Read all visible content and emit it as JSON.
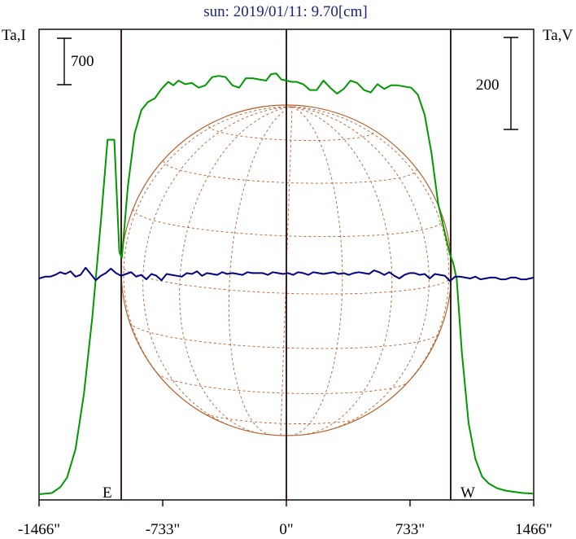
{
  "chart_data": {
    "type": "line",
    "title": "sun: 2019/01/11: 9.70[cm]",
    "left_axis_label": "Ta,I",
    "right_axis_label": "Ta,V",
    "scale_bar_left": "700",
    "scale_bar_right": "200",
    "limb_east_label": "E",
    "limb_west_label": "W",
    "xlim": [
      -1466,
      1466
    ],
    "x_ticks": [
      {
        "value": -1466,
        "label": "-1466\""
      },
      {
        "value": -733,
        "label": "-733\""
      },
      {
        "value": 0,
        "label": "0\""
      },
      {
        "value": 733,
        "label": "733\""
      },
      {
        "value": 1466,
        "label": "1466\""
      }
    ],
    "limb_x": [
      -980,
      980
    ],
    "grid": false,
    "series": [
      {
        "color": "#009900",
        "axis": "left",
        "ylim": [
          0,
          3700
        ],
        "x": [
          -1466,
          -1390,
          -1340,
          -1300,
          -1250,
          -1200,
          -1150,
          -1100,
          -1060,
          -1020,
          -990,
          -975,
          -940,
          -900,
          -860,
          -820,
          -780,
          -740,
          -700,
          -670,
          -640,
          -600,
          -560,
          -520,
          -480,
          -440,
          -400,
          -360,
          -320,
          -280,
          -240,
          -200,
          -160,
          -120,
          -90,
          -60,
          -30,
          0,
          30,
          60,
          100,
          140,
          180,
          220,
          260,
          300,
          340,
          380,
          420,
          460,
          500,
          540,
          580,
          620,
          660,
          700,
          740,
          780,
          820,
          860,
          900,
          940,
          970,
          990,
          1010,
          1040,
          1080,
          1120,
          1160,
          1200,
          1250,
          1300,
          1350,
          1400,
          1466
        ],
        "y": [
          0,
          10,
          60,
          140,
          380,
          850,
          1500,
          2300,
          3000,
          3000,
          2050,
          2000,
          2600,
          3050,
          3250,
          3320,
          3350,
          3430,
          3490,
          3460,
          3500,
          3470,
          3480,
          3440,
          3460,
          3530,
          3540,
          3530,
          3460,
          3440,
          3520,
          3520,
          3510,
          3500,
          3555,
          3560,
          3510,
          3500,
          3490,
          3490,
          3470,
          3420,
          3420,
          3500,
          3440,
          3390,
          3430,
          3500,
          3480,
          3420,
          3400,
          3470,
          3430,
          3460,
          3460,
          3450,
          3440,
          3380,
          3210,
          2890,
          2460,
          2210,
          2030,
          1950,
          1820,
          1200,
          600,
          300,
          150,
          90,
          50,
          30,
          20,
          10,
          5
        ]
      },
      {
        "color": "#000080",
        "axis": "right",
        "ylim": [
          -580,
          580
        ],
        "x": [
          -1466,
          -1430,
          -1400,
          -1370,
          -1340,
          -1310,
          -1280,
          -1250,
          -1220,
          -1190,
          -1160,
          -1130,
          -1100,
          -1070,
          -1040,
          -1010,
          -980,
          -950,
          -920,
          -890,
          -860,
          -830,
          -800,
          -770,
          -740,
          -710,
          -680,
          -650,
          -620,
          -590,
          -560,
          -530,
          -500,
          -470,
          -440,
          -410,
          -380,
          -350,
          -320,
          -290,
          -260,
          -230,
          -200,
          -170,
          -140,
          -110,
          -80,
          -50,
          -20,
          10,
          40,
          70,
          100,
          130,
          160,
          190,
          220,
          250,
          280,
          310,
          340,
          370,
          400,
          430,
          460,
          490,
          520,
          550,
          580,
          610,
          640,
          670,
          700,
          730,
          760,
          790,
          820,
          850,
          880,
          910,
          940,
          970,
          1000,
          1030,
          1060,
          1090,
          1120,
          1150,
          1180,
          1210,
          1240,
          1270,
          1300,
          1330,
          1360,
          1390,
          1420,
          1466
        ],
        "y": [
          0,
          4,
          4,
          8,
          14,
          10,
          16,
          4,
          8,
          24,
          10,
          -4,
          6,
          12,
          22,
          12,
          6,
          10,
          14,
          4,
          8,
          -2,
          10,
          6,
          -4,
          10,
          8,
          6,
          4,
          12,
          10,
          16,
          6,
          12,
          10,
          8,
          14,
          10,
          12,
          10,
          8,
          14,
          12,
          12,
          12,
          8,
          14,
          12,
          10,
          12,
          8,
          14,
          12,
          8,
          14,
          12,
          10,
          12,
          14,
          10,
          12,
          8,
          12,
          14,
          12,
          10,
          18,
          14,
          8,
          14,
          6,
          0,
          8,
          12,
          12,
          8,
          10,
          0,
          10,
          8,
          6,
          -6,
          4,
          4,
          2,
          0,
          4,
          -2,
          0,
          2,
          2,
          -2,
          -2,
          2,
          2,
          -2,
          -2,
          2
        ]
      }
    ]
  }
}
